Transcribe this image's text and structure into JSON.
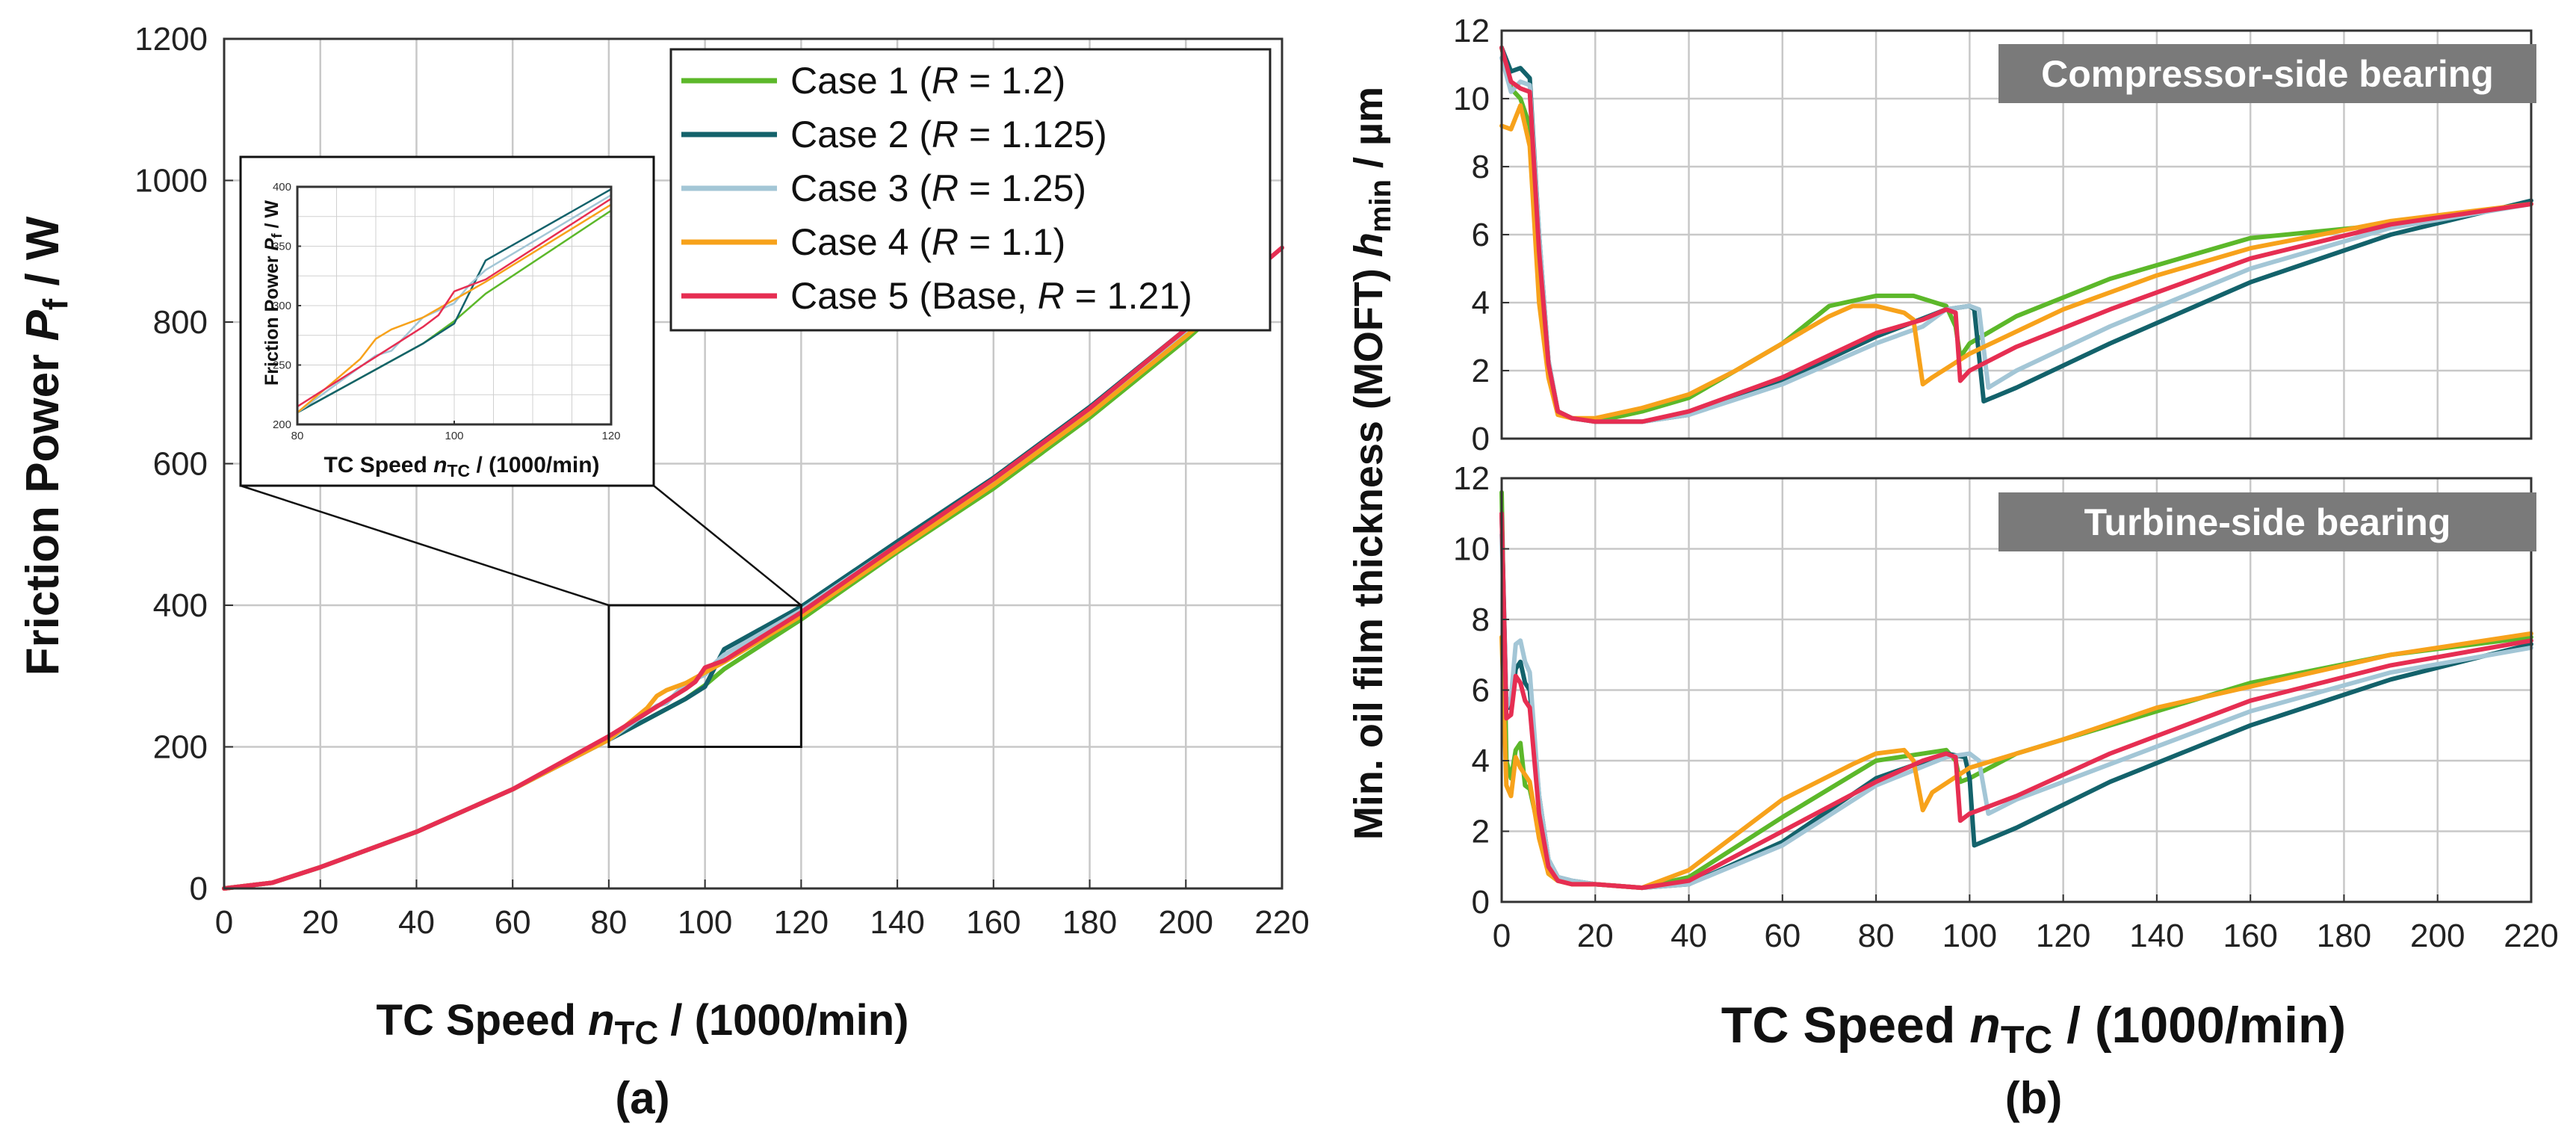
{
  "colors": {
    "case1": "#5cb82a",
    "case2": "#13626b",
    "case3": "#a3c6d6",
    "case4": "#f7a21b",
    "case5": "#e62e52"
  },
  "panel_a": {
    "label": "(a)",
    "xlabel": {
      "pre": "TC Speed ",
      "var": "n",
      "sub": "TC",
      "post": " / (1000/min)"
    },
    "ylabel": {
      "pre": "Friction Power ",
      "var": "P",
      "sub": "f",
      "post": " / W"
    },
    "inset_xlabel": {
      "pre": "TC Speed ",
      "var": "n",
      "sub": "TC",
      "post": " / (1000/min)"
    },
    "inset_ylabel": {
      "pre": "Friction Power ",
      "var": "P",
      "sub": "f",
      "post": " / W"
    },
    "legend": [
      {
        "key": "case1",
        "pre": "Case 1 (",
        "var": "R",
        "post": " = 1.2)"
      },
      {
        "key": "case2",
        "pre": "Case 2 (",
        "var": "R",
        "post": " = 1.125)"
      },
      {
        "key": "case3",
        "pre": "Case 3 (",
        "var": "R",
        "post": " = 1.25)"
      },
      {
        "key": "case4",
        "pre": "Case 4 (",
        "var": "R",
        "post": " = 1.1)"
      },
      {
        "key": "case5",
        "pre": "Case 5 (Base, ",
        "var": "R",
        "post": " = 1.21)"
      }
    ]
  },
  "panel_b": {
    "label": "(b)",
    "xlabel": {
      "pre": "TC Speed ",
      "var": "n",
      "sub": "TC",
      "post": " / (1000/min)"
    },
    "ylabel": {
      "pre": "Min. oil film thickness (MOFT) ",
      "var": "h",
      "sub": "min",
      "post": " / µm"
    },
    "top_title": "Compressor-side bearing",
    "bottom_title": "Turbine-side bearing"
  },
  "chart_data": [
    {
      "type": "line",
      "title": "",
      "xlabel": "TC Speed nTC / (1000/min)",
      "ylabel": "Friction Power Pf / W",
      "xlim": [
        0,
        220
      ],
      "ylim": [
        0,
        1200
      ],
      "xticks": [
        0,
        20,
        40,
        60,
        80,
        100,
        120,
        140,
        160,
        180,
        200,
        220
      ],
      "yticks": [
        0,
        200,
        400,
        600,
        800,
        1000,
        1200
      ],
      "grid": true,
      "legend_position": "top-right",
      "series": [
        {
          "name": "Case 1 (R = 1.2)",
          "key": "case1",
          "x": [
            0,
            10,
            20,
            40,
            60,
            80,
            96,
            100,
            104,
            120,
            140,
            160,
            180,
            200,
            210
          ],
          "y": [
            0,
            8,
            30,
            80,
            140,
            210,
            268,
            287,
            310,
            380,
            475,
            565,
            665,
            775,
            835
          ]
        },
        {
          "name": "Case 2 (R = 1.125)",
          "key": "case2",
          "x": [
            0,
            10,
            20,
            40,
            60,
            80,
            96,
            100,
            103,
            104,
            120,
            140,
            160,
            180,
            200,
            210
          ],
          "y": [
            0,
            8,
            30,
            80,
            140,
            210,
            268,
            285,
            325,
            338,
            398,
            490,
            580,
            680,
            790,
            845
          ]
        },
        {
          "name": "Case 3 (R = 1.25)",
          "key": "case3",
          "x": [
            0,
            10,
            20,
            40,
            60,
            80,
            90,
            92,
            96,
            100,
            102,
            104,
            120,
            140,
            160,
            180,
            200,
            210
          ],
          "y": [
            0,
            8,
            30,
            80,
            140,
            210,
            258,
            262,
            290,
            302,
            318,
            330,
            393,
            485,
            575,
            675,
            785,
            840
          ]
        },
        {
          "name": "Case 4 (R = 1.1)",
          "key": "case4",
          "x": [
            0,
            10,
            20,
            40,
            60,
            80,
            88,
            90,
            92,
            96,
            100,
            104,
            120,
            140,
            160,
            180,
            200,
            210
          ],
          "y": [
            0,
            8,
            30,
            80,
            140,
            210,
            255,
            272,
            280,
            290,
            305,
            320,
            385,
            478,
            570,
            670,
            780,
            835
          ]
        },
        {
          "name": "Case 5 (Base, R = 1.21)",
          "key": "case5",
          "x": [
            0,
            10,
            20,
            40,
            60,
            80,
            96,
            98,
            100,
            104,
            120,
            140,
            160,
            180,
            200,
            220
          ],
          "y": [
            0,
            8,
            30,
            80,
            140,
            215,
            282,
            292,
            312,
            322,
            390,
            485,
            578,
            678,
            790,
            905
          ]
        }
      ],
      "annotations": [
        {
          "type": "zoom-box",
          "xlim": [
            80,
            120
          ],
          "ylim": [
            200,
            400
          ]
        }
      ],
      "inset": {
        "xlim": [
          80,
          120
        ],
        "ylim": [
          200,
          400
        ],
        "xticks": [
          80,
          100,
          120
        ],
        "yticks": [
          200,
          250,
          300,
          350,
          400
        ]
      }
    },
    {
      "type": "line",
      "title": "Compressor-side bearing",
      "xlabel": "TC Speed nTC / (1000/min)",
      "ylabel": "Min. oil film thickness (MOFT) hmin / µm",
      "xlim": [
        0,
        220
      ],
      "ylim": [
        0,
        12
      ],
      "xticks": [
        0,
        20,
        40,
        60,
        80,
        100,
        120,
        140,
        160,
        180,
        200,
        220
      ],
      "yticks": [
        0,
        2,
        4,
        6,
        8,
        10,
        12
      ],
      "grid": true,
      "series": [
        {
          "key": "case1",
          "x": [
            0,
            2,
            4,
            6,
            8,
            10,
            12,
            15,
            20,
            30,
            40,
            60,
            70,
            80,
            88,
            95,
            97,
            98,
            100,
            110,
            130,
            160,
            190,
            220
          ],
          "y": [
            11.5,
            10.3,
            10,
            9.2,
            5,
            2.2,
            0.8,
            0.6,
            0.5,
            0.8,
            1.2,
            2.8,
            3.9,
            4.2,
            4.2,
            3.9,
            3.3,
            2.4,
            2.8,
            3.6,
            4.7,
            5.9,
            6.3,
            6.9
          ]
        },
        {
          "name": "Case 2",
          "key": "case2",
          "x": [
            0,
            2,
            4,
            6,
            8,
            10,
            12,
            15,
            20,
            30,
            40,
            60,
            80,
            95,
            100,
            101,
            103,
            110,
            130,
            160,
            190,
            220
          ],
          "y": [
            11.5,
            10.8,
            10.9,
            10.6,
            6,
            2.3,
            0.8,
            0.6,
            0.5,
            0.5,
            0.7,
            1.7,
            3.0,
            3.8,
            3.9,
            3.8,
            1.1,
            1.5,
            2.8,
            4.6,
            6,
            7
          ]
        },
        {
          "name": "Case 3",
          "key": "case3",
          "x": [
            0,
            2,
            4,
            6,
            8,
            10,
            12,
            15,
            20,
            30,
            40,
            60,
            80,
            90,
            95,
            100,
            102,
            104,
            110,
            130,
            160,
            190,
            220
          ],
          "y": [
            11.2,
            10.2,
            10.5,
            10.4,
            6,
            2.3,
            0.8,
            0.6,
            0.5,
            0.5,
            0.7,
            1.6,
            2.8,
            3.3,
            3.8,
            3.9,
            3.8,
            1.5,
            2.0,
            3.3,
            5,
            6.2,
            6.9
          ]
        },
        {
          "name": "Case 4",
          "key": "case4",
          "x": [
            0,
            2,
            4,
            6,
            8,
            10,
            12,
            15,
            20,
            30,
            40,
            50,
            60,
            70,
            75,
            80,
            86,
            88,
            90,
            92,
            100,
            120,
            140,
            160,
            190,
            220
          ],
          "y": [
            9.2,
            9.1,
            9.8,
            8.6,
            4,
            1.8,
            0.7,
            0.6,
            0.6,
            0.9,
            1.3,
            2,
            2.8,
            3.6,
            3.9,
            3.9,
            3.7,
            3.5,
            1.6,
            1.8,
            2.5,
            3.8,
            4.8,
            5.6,
            6.4,
            6.9
          ]
        },
        {
          "name": "Case 5",
          "key": "case5",
          "x": [
            0,
            2,
            4,
            6,
            8,
            10,
            12,
            15,
            20,
            30,
            40,
            60,
            80,
            90,
            95,
            97,
            98,
            100,
            110,
            130,
            160,
            190,
            220
          ],
          "y": [
            11.5,
            10.5,
            10.3,
            10.2,
            5.5,
            2.2,
            0.8,
            0.6,
            0.5,
            0.5,
            0.8,
            1.8,
            3.1,
            3.5,
            3.8,
            3.7,
            1.7,
            2.0,
            2.7,
            3.8,
            5.3,
            6.3,
            6.9
          ]
        }
      ]
    },
    {
      "type": "line",
      "title": "Turbine-side bearing",
      "xlabel": "TC Speed nTC / (1000/min)",
      "ylabel": "Min. oil film thickness (MOFT) hmin / µm",
      "xlim": [
        0,
        220
      ],
      "ylim": [
        0,
        12
      ],
      "xticks": [
        0,
        20,
        40,
        60,
        80,
        100,
        120,
        140,
        160,
        180,
        200,
        220
      ],
      "yticks": [
        0,
        2,
        4,
        6,
        8,
        10,
        12
      ],
      "grid": true,
      "series": [
        {
          "name": "Case 1",
          "key": "case1",
          "x": [
            0,
            1,
            2,
            3,
            4,
            5,
            6,
            8,
            10,
            12,
            15,
            20,
            30,
            40,
            60,
            80,
            95,
            97,
            98,
            100,
            110,
            130,
            160,
            190,
            220
          ],
          "y": [
            11.6,
            4,
            3.5,
            4.3,
            4.5,
            3.3,
            3.2,
            2,
            0.8,
            0.6,
            0.5,
            0.5,
            0.4,
            0.7,
            2.4,
            4,
            4.3,
            4,
            3.4,
            3.5,
            4.2,
            5,
            6.2,
            7,
            7.5
          ]
        },
        {
          "name": "Case 2",
          "key": "case2",
          "x": [
            0,
            1,
            2,
            3,
            4,
            5,
            6,
            8,
            10,
            12,
            15,
            20,
            30,
            40,
            60,
            80,
            95,
            99,
            100,
            101,
            110,
            130,
            160,
            190,
            220
          ],
          "y": [
            11,
            5.5,
            5.5,
            6.6,
            6.8,
            6.2,
            6,
            3,
            1.2,
            0.7,
            0.6,
            0.5,
            0.4,
            0.5,
            1.7,
            3.5,
            4.2,
            4.1,
            3.5,
            1.6,
            2.1,
            3.4,
            5,
            6.3,
            7.3
          ]
        },
        {
          "name": "Case 3",
          "key": "case3",
          "x": [
            0,
            1,
            2,
            3,
            4,
            5,
            6,
            8,
            10,
            12,
            15,
            20,
            30,
            40,
            60,
            80,
            95,
            100,
            102,
            104,
            110,
            130,
            160,
            190,
            220
          ],
          "y": [
            10.4,
            5.5,
            5.8,
            7.3,
            7.4,
            6.8,
            6.5,
            3,
            1.2,
            0.7,
            0.6,
            0.5,
            0.4,
            0.5,
            1.6,
            3.3,
            4.1,
            4.2,
            4,
            2.5,
            2.9,
            3.9,
            5.4,
            6.5,
            7.2
          ]
        },
        {
          "name": "Case 4",
          "key": "case4",
          "x": [
            0,
            1,
            2,
            3,
            4,
            5,
            6,
            8,
            10,
            12,
            15,
            20,
            30,
            40,
            60,
            75,
            80,
            86,
            88,
            90,
            92,
            100,
            120,
            140,
            160,
            190,
            220
          ],
          "y": [
            7.5,
            3.3,
            3,
            4.1,
            3.8,
            3.6,
            3.4,
            1.8,
            0.8,
            0.6,
            0.5,
            0.5,
            0.4,
            0.9,
            2.9,
            3.9,
            4.2,
            4.3,
            4,
            2.6,
            3.1,
            3.8,
            4.6,
            5.5,
            6.1,
            7,
            7.6
          ]
        },
        {
          "name": "Case 5",
          "key": "case5",
          "x": [
            0,
            1,
            2,
            3,
            4,
            5,
            6,
            8,
            10,
            12,
            15,
            20,
            30,
            40,
            60,
            80,
            90,
            95,
            97,
            98,
            100,
            110,
            130,
            160,
            190,
            220
          ],
          "y": [
            11,
            5.2,
            5.3,
            6.4,
            6.2,
            5.7,
            5.5,
            2.5,
            1,
            0.6,
            0.5,
            0.5,
            0.4,
            0.6,
            2,
            3.4,
            4.0,
            4.2,
            4.1,
            2.3,
            2.5,
            3,
            4.2,
            5.7,
            6.7,
            7.4
          ]
        }
      ]
    }
  ]
}
